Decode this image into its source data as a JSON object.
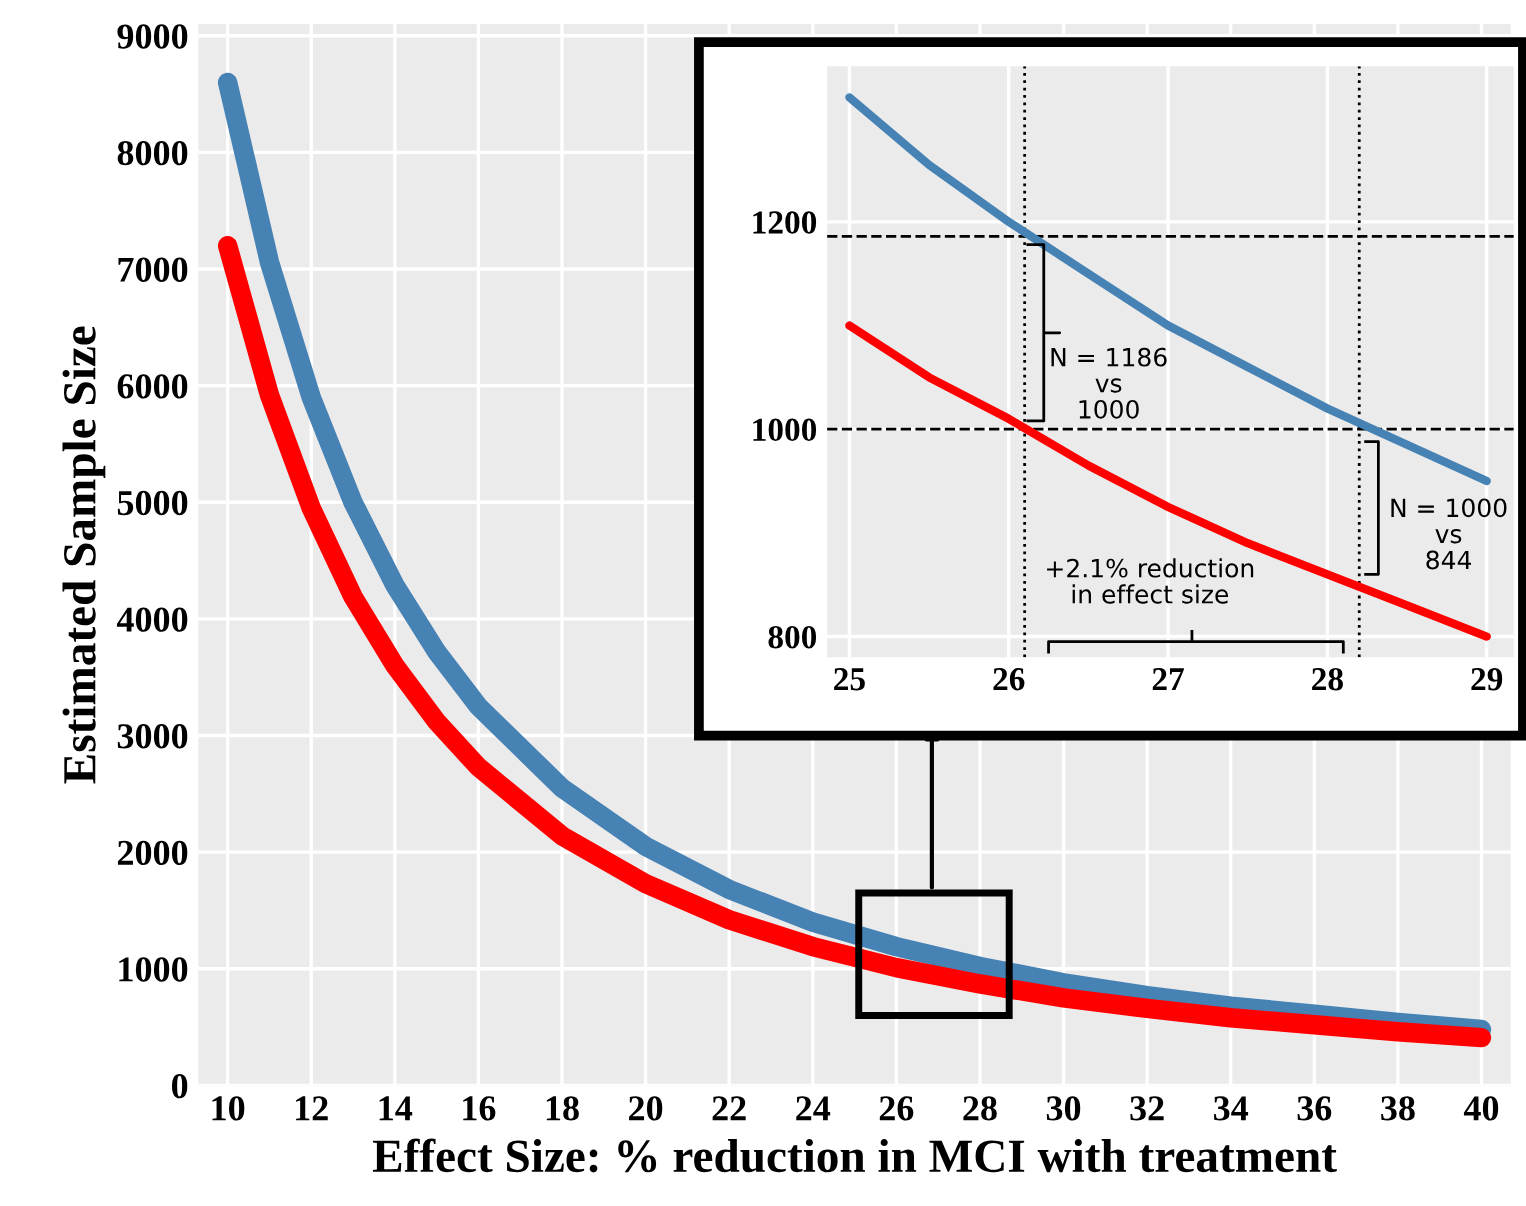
{
  "chart_data": [
    {
      "type": "line",
      "xlabel": "Effect Size: % reduction in MCI with treatment",
      "ylabel": "Estimated Sample Size",
      "x": [
        10,
        11,
        12,
        13,
        14,
        15,
        16,
        18,
        20,
        22,
        24,
        26,
        28,
        30,
        32,
        34,
        36,
        38,
        40
      ],
      "series": [
        {
          "color": "#4682b4",
          "values": [
            8600,
            7060,
            5900,
            5000,
            4290,
            3720,
            3250,
            2550,
            2050,
            1680,
            1400,
            1190,
            1020,
            880,
            770,
            680,
            610,
            540,
            480
          ]
        },
        {
          "color": "#ff0000",
          "values": [
            7200,
            5920,
            4950,
            4190,
            3600,
            3120,
            2730,
            2140,
            1730,
            1420,
            1190,
            1010,
            870,
            750,
            660,
            580,
            520,
            460,
            410
          ]
        }
      ],
      "xlim": [
        9.3,
        40.7
      ],
      "ylim": [
        0,
        9100
      ],
      "xticks": [
        10,
        12,
        14,
        16,
        18,
        20,
        22,
        24,
        26,
        28,
        30,
        32,
        34,
        36,
        38,
        40
      ],
      "yticks": [
        0,
        1000,
        2000,
        3000,
        4000,
        5000,
        6000,
        7000,
        8000,
        9000
      ],
      "grid": true
    },
    {
      "type": "line",
      "x": [
        25,
        25.5,
        26,
        26.5,
        27,
        27.5,
        28,
        28.5,
        29
      ],
      "series": [
        {
          "color": "#4682b4",
          "values": [
            1320,
            1255,
            1200,
            1150,
            1100,
            1060,
            1020,
            985,
            950
          ]
        },
        {
          "color": "#ff0000",
          "values": [
            1100,
            1050,
            1010,
            965,
            925,
            890,
            860,
            830,
            800
          ]
        }
      ],
      "xlim": [
        24.86,
        29.17
      ],
      "ylim": [
        780,
        1350
      ],
      "xticks": [
        25,
        26,
        27,
        28,
        29
      ],
      "yticks": [
        800,
        1000,
        1200
      ],
      "grid": true,
      "ref_lines": [
        {
          "axis": "y",
          "value": 1186,
          "line_style": "dashed",
          "color": "#000000"
        },
        {
          "axis": "y",
          "value": 1000,
          "line_style": "dashed",
          "color": "#000000"
        },
        {
          "axis": "x",
          "value": 26.1,
          "line_style": "dotted",
          "color": "#000000"
        },
        {
          "axis": "x",
          "value": 28.2,
          "line_style": "dotted",
          "color": "#000000"
        }
      ],
      "annotations": [
        "N = 1186\nvs\n1000",
        "N = 1000\nvs\n844",
        "+2.1% reduction\nin effect size"
      ]
    }
  ]
}
